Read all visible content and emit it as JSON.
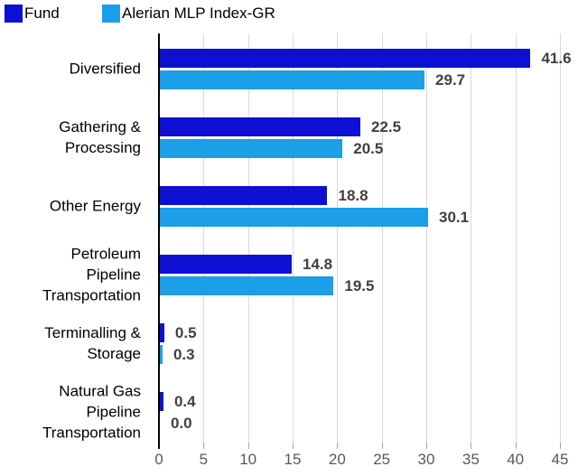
{
  "chart_data": {
    "type": "bar",
    "orientation": "horizontal",
    "title": "",
    "legend_position": "top-left",
    "grid": true,
    "xlim": [
      0,
      45
    ],
    "x_ticks": [
      "0",
      "5",
      "10",
      "15",
      "20",
      "25",
      "30",
      "35",
      "40",
      "45"
    ],
    "categories": [
      "Diversified",
      "Gathering & Processing",
      "Other Energy",
      "Petroleum Pipeline Transportation",
      "Terminalling & Storage",
      "Natural Gas Pipeline Transportation"
    ],
    "category_label_lines": [
      [
        "Diversified"
      ],
      [
        "Gathering &",
        "Processing"
      ],
      [
        "Other Energy"
      ],
      [
        "Petroleum",
        "Pipeline",
        "Transportation"
      ],
      [
        "Terminalling &",
        "Storage"
      ],
      [
        "Natural Gas",
        "Pipeline",
        "Transportation"
      ]
    ],
    "series": [
      {
        "name": "Fund",
        "color": "#0d10d2",
        "values": [
          41.6,
          22.5,
          18.8,
          14.8,
          0.5,
          0.4
        ],
        "value_labels": [
          "41.6",
          "22.5",
          "18.8",
          "14.8",
          "0.5",
          "0.4"
        ]
      },
      {
        "name": "Alerian MLP Index-GR",
        "color": "#1c9ee8",
        "values": [
          29.7,
          20.5,
          30.1,
          19.5,
          0.3,
          0.0
        ],
        "value_labels": [
          "29.7",
          "20.5",
          "30.1",
          "19.5",
          "0.3",
          "0.0"
        ]
      }
    ],
    "style_colors": {
      "value_label": "#404040",
      "tick_label": "#595959",
      "gridline": "#d9d9d9",
      "axis": "#000000",
      "background": "#ffffff"
    }
  }
}
